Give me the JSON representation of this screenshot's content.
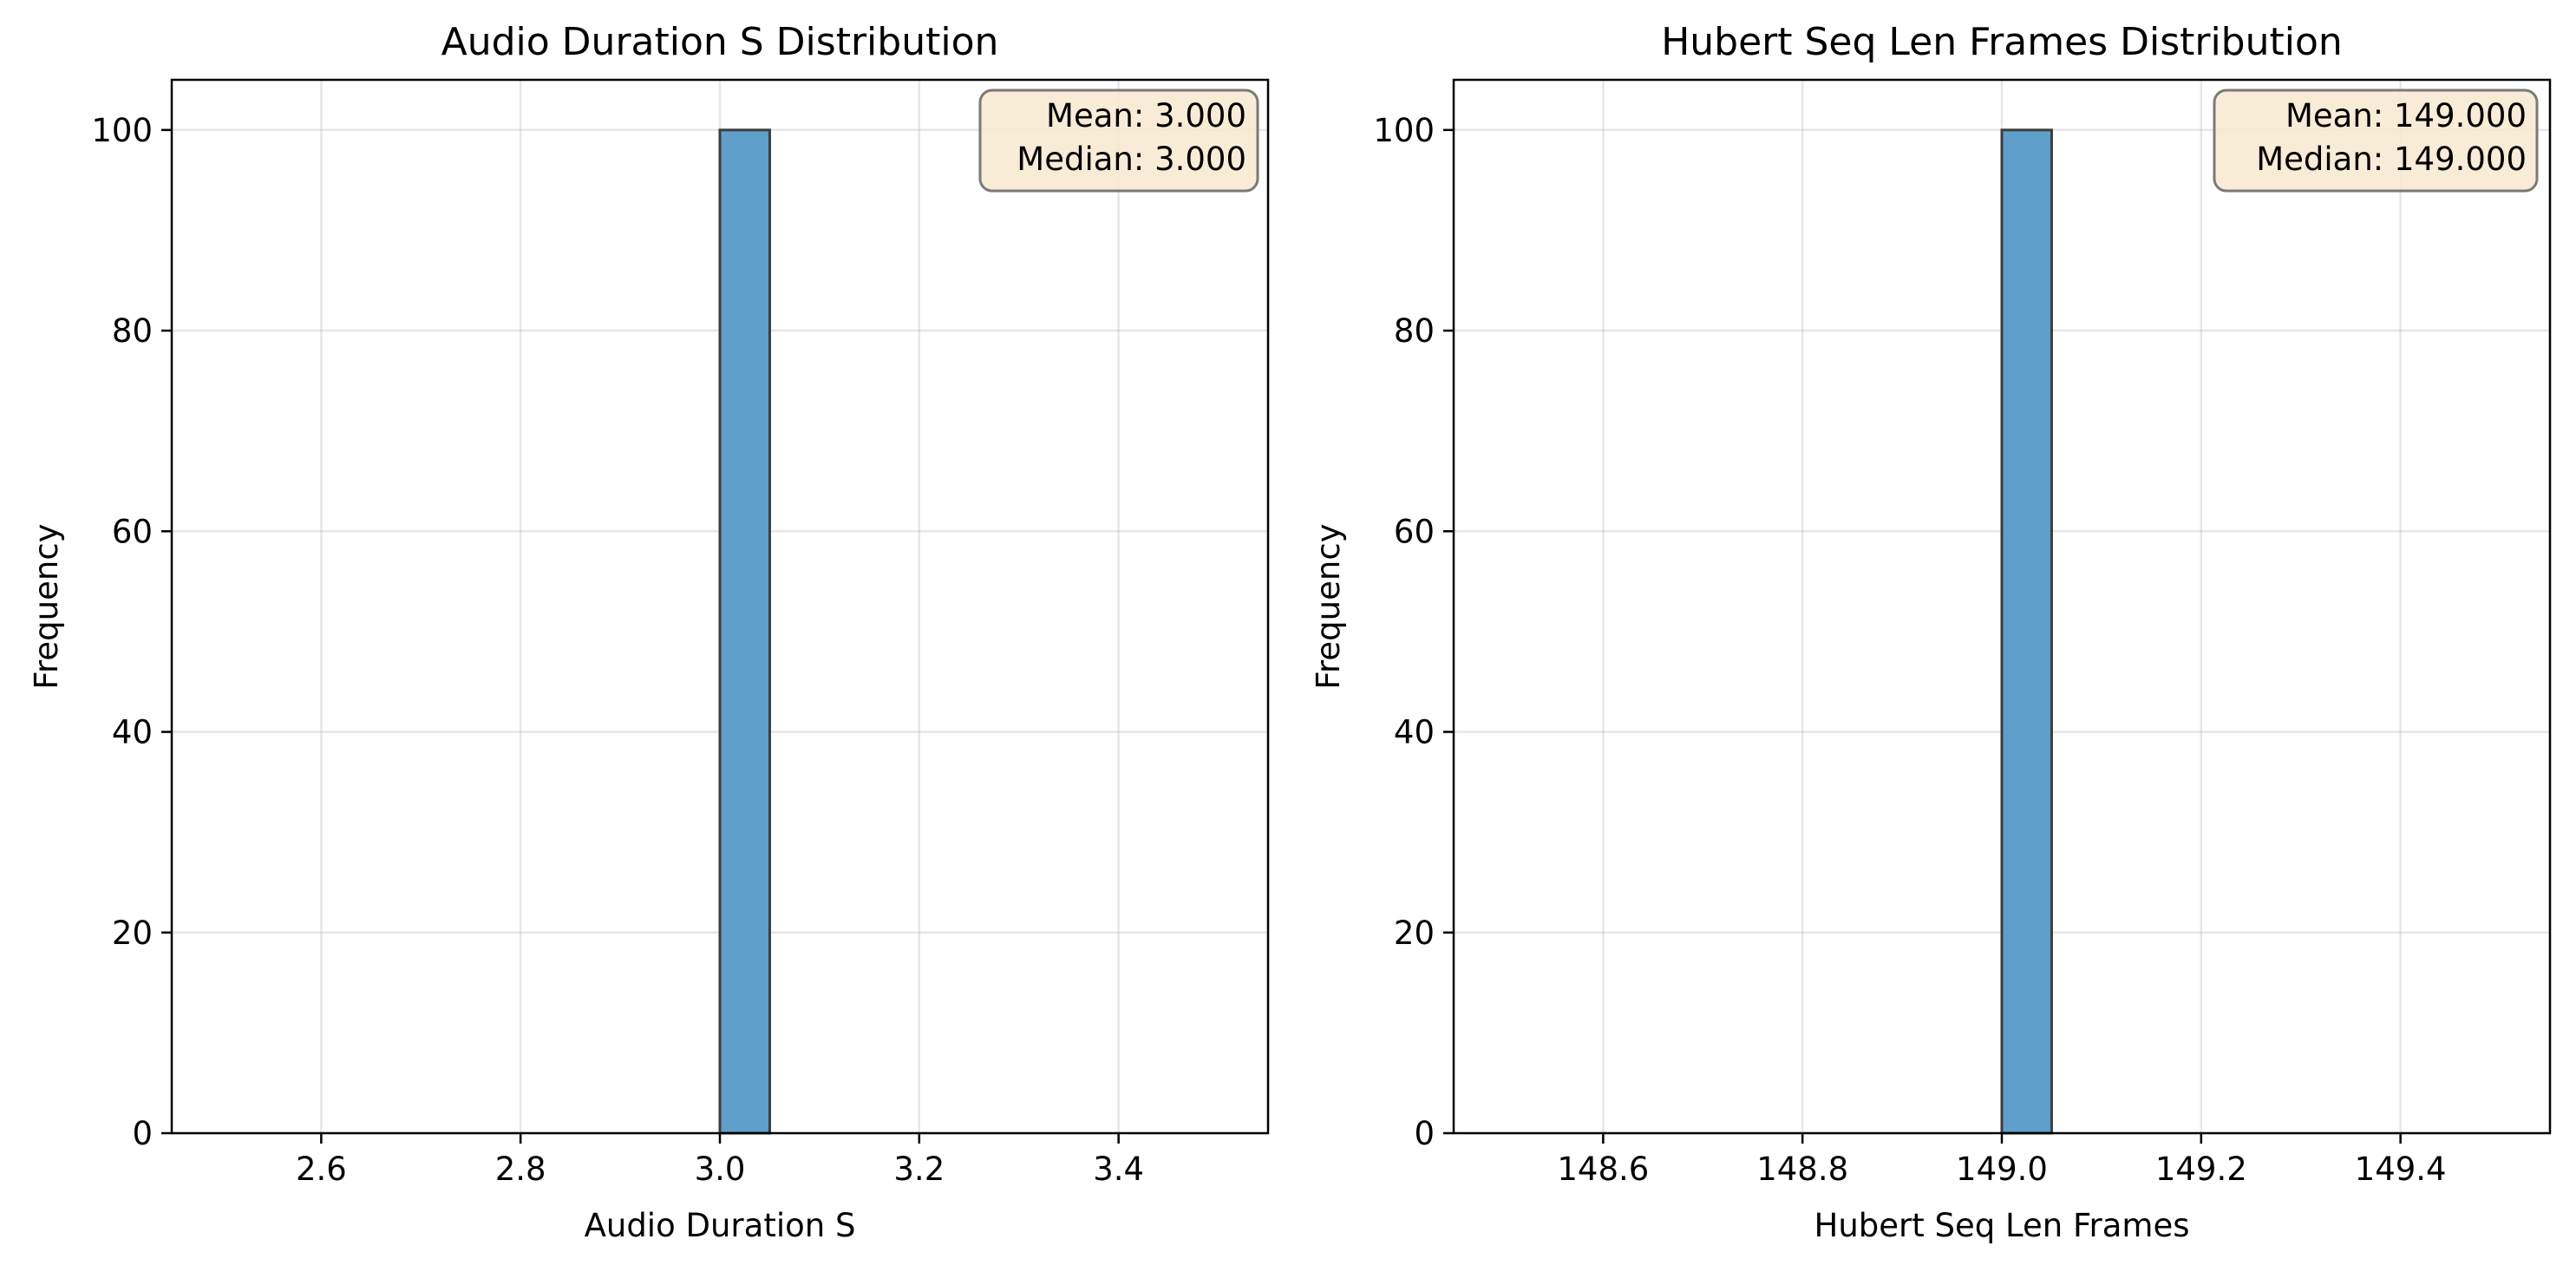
{
  "chart_data": [
    {
      "type": "bar",
      "title": "Audio Duration S Distribution",
      "xlabel": "Audio Duration S",
      "ylabel": "Frequency",
      "xlim": [
        2.45,
        3.55
      ],
      "ylim": [
        0,
        105
      ],
      "xticks": [
        2.6,
        2.8,
        3.0,
        3.2,
        3.4
      ],
      "xtick_labels": [
        "2.6",
        "2.8",
        "3.0",
        "3.2",
        "3.4"
      ],
      "yticks": [
        0,
        20,
        40,
        60,
        80,
        100
      ],
      "ytick_labels": [
        "0",
        "20",
        "40",
        "60",
        "80",
        "100"
      ],
      "bins": {
        "start": 2.5,
        "end": 3.5,
        "count": 20,
        "frequencies": [
          0,
          0,
          0,
          0,
          0,
          0,
          0,
          0,
          0,
          0,
          100,
          0,
          0,
          0,
          0,
          0,
          0,
          0,
          0,
          0
        ]
      },
      "grid": true,
      "stats": {
        "mean": "Mean: 3.000",
        "median": "Median: 3.000",
        "placement": "top-right"
      },
      "bar_color": "#5f9fcc",
      "edge_color": "#3d3d3d"
    },
    {
      "type": "bar",
      "title": "Hubert Seq Len Frames Distribution",
      "xlabel": "Hubert Seq Len Frames",
      "ylabel": "Frequency",
      "xlim": [
        148.45,
        149.55
      ],
      "ylim": [
        0,
        105
      ],
      "xticks": [
        148.6,
        148.8,
        149.0,
        149.2,
        149.4
      ],
      "xtick_labels": [
        "148.6",
        "148.8",
        "149.0",
        "149.2",
        "149.4"
      ],
      "yticks": [
        0,
        20,
        40,
        60,
        80,
        100
      ],
      "ytick_labels": [
        "0",
        "20",
        "40",
        "60",
        "80",
        "100"
      ],
      "bins": {
        "start": 148.5,
        "end": 149.5,
        "count": 20,
        "frequencies": [
          0,
          0,
          0,
          0,
          0,
          0,
          0,
          0,
          0,
          0,
          100,
          0,
          0,
          0,
          0,
          0,
          0,
          0,
          0,
          0
        ]
      },
      "grid": true,
      "stats": {
        "mean": "Mean: 149.000",
        "median": "Median: 149.000",
        "placement": "top-right"
      },
      "bar_color": "#5f9fcc",
      "edge_color": "#3d3d3d"
    }
  ]
}
